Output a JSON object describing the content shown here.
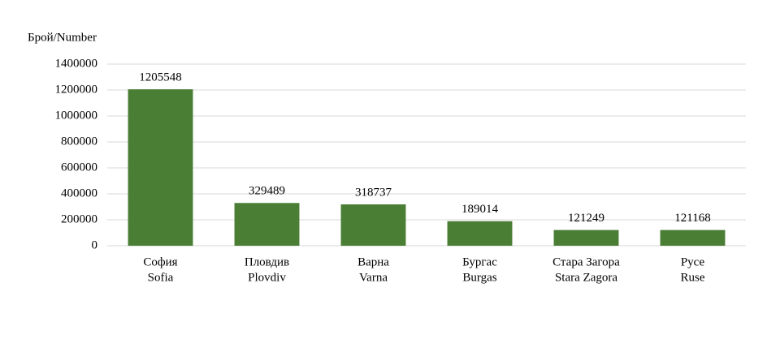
{
  "chart_data": {
    "type": "bar",
    "y_label": "Брой/Number",
    "categories": [
      [
        "София",
        "Sofia"
      ],
      [
        "Пловдив",
        "Plovdiv"
      ],
      [
        "Варна",
        "Varna"
      ],
      [
        "Бургас",
        "Burgas"
      ],
      [
        "Стара Загора",
        "Stara Zagora"
      ],
      [
        "Русе",
        "Ruse"
      ]
    ],
    "values": [
      1205548,
      329489,
      318737,
      189014,
      121249,
      121168
    ],
    "color": "#4a7e35",
    "ylim": [
      0,
      1400000
    ],
    "yticks": [
      0,
      200000,
      400000,
      600000,
      800000,
      1000000,
      1200000,
      1400000
    ],
    "grid": true
  }
}
